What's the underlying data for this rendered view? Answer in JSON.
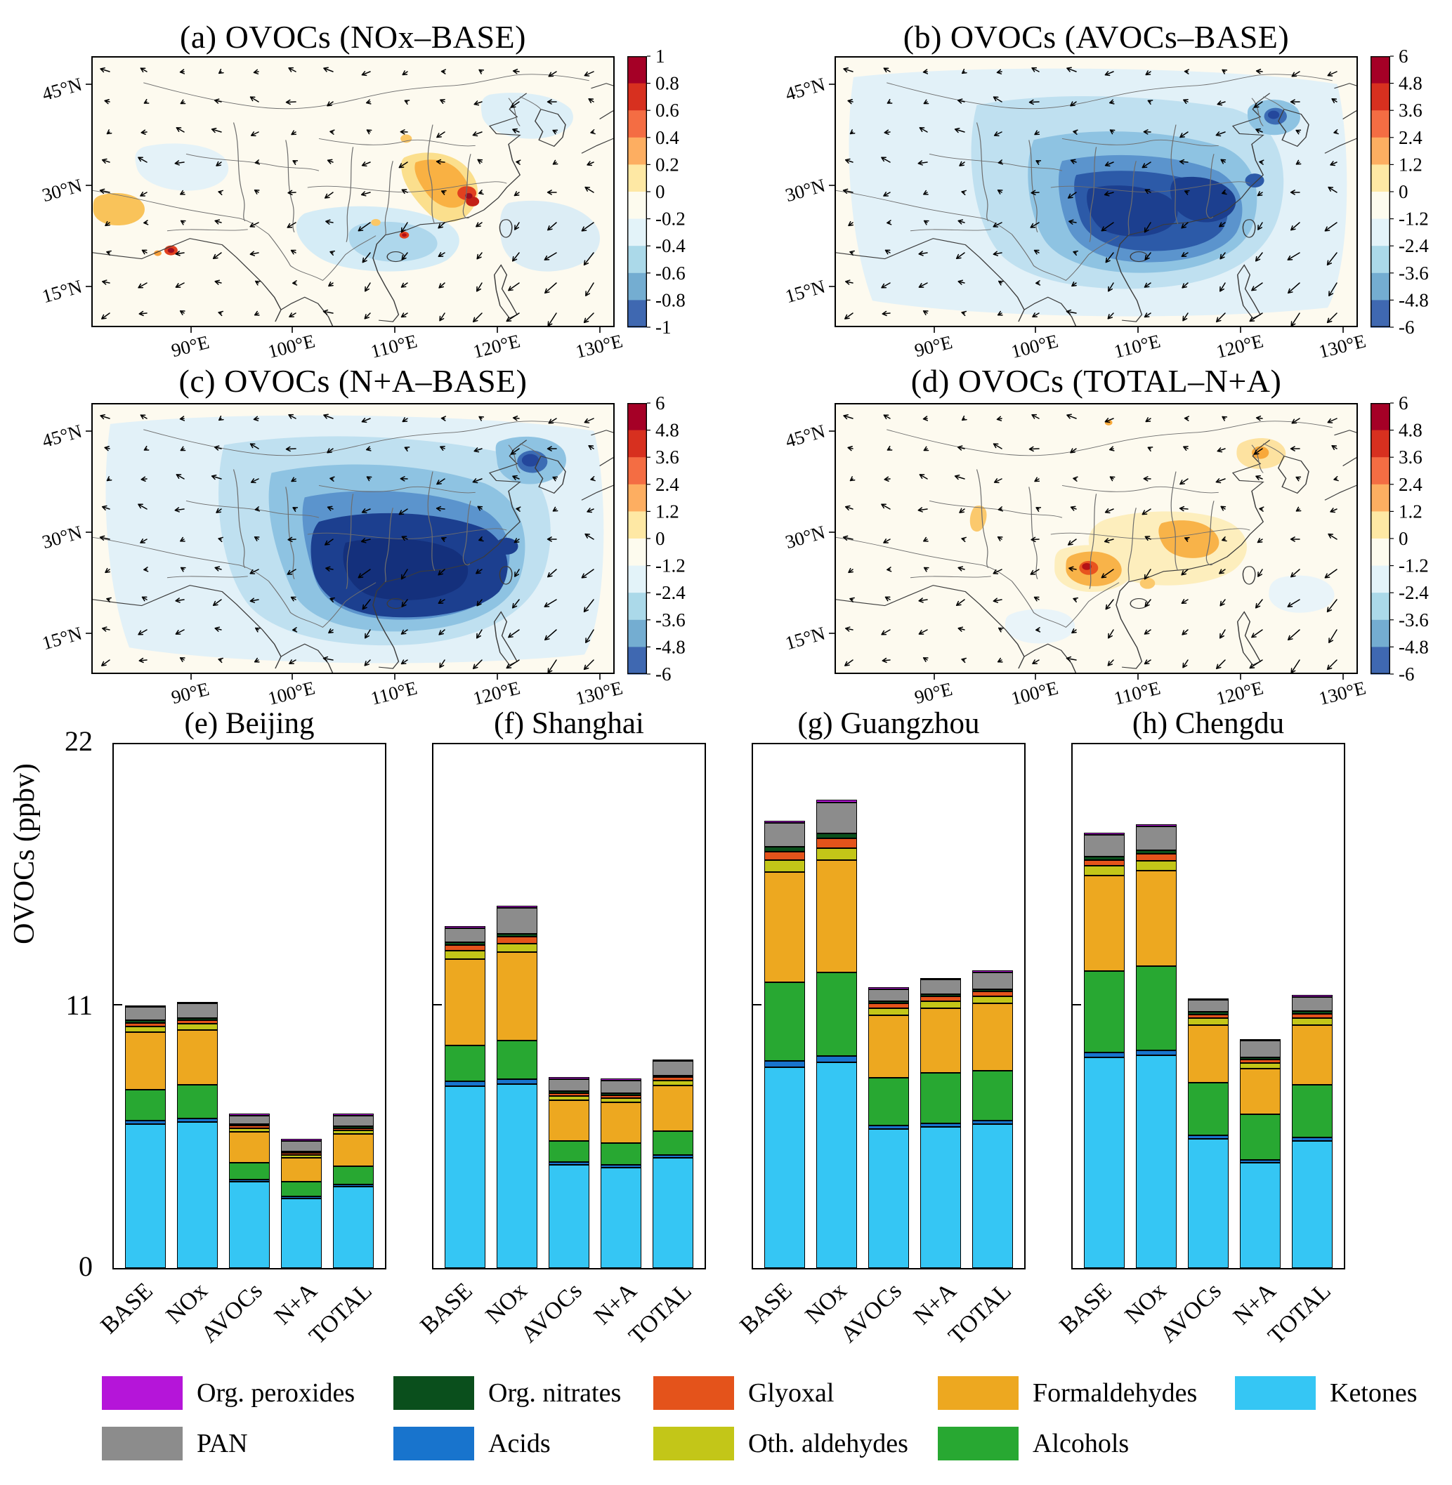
{
  "map_axes": {
    "lon_ticks": [
      "90°E",
      "100°E",
      "110°E",
      "120°E",
      "130°E"
    ],
    "lat_ticks": [
      "45°N",
      "30°N",
      "15°N"
    ]
  },
  "panels": [
    {
      "id": "a",
      "title": "(a) OVOCs (NOx–BASE)",
      "cb_ticks": [
        "1",
        "0.8",
        "0.6",
        "0.4",
        "0.2",
        "0",
        "-0.2",
        "-0.4",
        "-0.6",
        "-0.8",
        "-1"
      ]
    },
    {
      "id": "b",
      "title": "(b) OVOCs (AVOCs–BASE)",
      "cb_ticks": [
        "6",
        "4.8",
        "3.6",
        "2.4",
        "1.2",
        "0",
        "-1.2",
        "-2.4",
        "-3.6",
        "-4.8",
        "-6"
      ]
    },
    {
      "id": "c",
      "title": "(c) OVOCs (N+A–BASE)",
      "cb_ticks": [
        "6",
        "4.8",
        "3.6",
        "2.4",
        "1.2",
        "0",
        "-1.2",
        "-2.4",
        "-3.6",
        "-4.8",
        "-6"
      ]
    },
    {
      "id": "d",
      "title": "(d) OVOCs (TOTAL–N+A)",
      "cb_ticks": [
        "6",
        "4.8",
        "3.6",
        "2.4",
        "1.2",
        "0",
        "-1.2",
        "-2.4",
        "-3.6",
        "-4.8",
        "-6"
      ]
    }
  ],
  "colorbar_colors": [
    "#a50026",
    "#d7301f",
    "#f46d43",
    "#fdae61",
    "#fee8a4",
    "#fdfbee",
    "#e3f3f9",
    "#abd9e9",
    "#74add1",
    "#3f68b1"
  ],
  "legend": {
    "items": [
      {
        "label": "Org. peroxides",
        "color": "#b515d9"
      },
      {
        "label": "Org. nitrates",
        "color": "#0a4f1c"
      },
      {
        "label": "Glyoxal",
        "color": "#e4531b"
      },
      {
        "label": "Formaldehydes",
        "color": "#eda820"
      },
      {
        "label": "Ketones",
        "color": "#35c6f4"
      },
      {
        "label": "PAN",
        "color": "#8c8c8c"
      },
      {
        "label": "Acids",
        "color": "#1874cd"
      },
      {
        "label": "Oth. aldehydes",
        "color": "#c3c618"
      },
      {
        "label": "Alcohols",
        "color": "#28a832"
      }
    ]
  },
  "chart_data": {
    "maps": [
      {
        "type": "heatmap",
        "panel": "a",
        "title": "(a) OVOCs (NOx–BASE)",
        "units": "ppbv",
        "scale_range": [
          -1,
          1
        ],
        "description": "OVOC change from NOx reduction: increases up to ~1 ppbv over the Yangtze River Delta and central-east China, weak decreases (−0.2 to −0.6) over southern China; wind vectors overlaid."
      },
      {
        "type": "heatmap",
        "panel": "b",
        "title": "(b) OVOCs (AVOCs–BASE)",
        "units": "ppbv",
        "scale_range": [
          -6,
          6
        ],
        "description": "Widespread OVOC decreases up to −6 ppbv over central, southern and eastern China from AVOC reduction; smaller decreases elsewhere and a decrease spot over northeast China."
      },
      {
        "type": "heatmap",
        "panel": "c",
        "title": "(c) OVOCs (N+A–BASE)",
        "units": "ppbv",
        "scale_range": [
          -6,
          6
        ],
        "description": "Strongest and most extensive OVOC decreases (to −6 ppbv) over southern/central China under combined NOx+AVOC reduction; decrease patch over northeast China."
      },
      {
        "type": "heatmap",
        "panel": "d",
        "title": "(d) OVOCs (TOTAL–N+A)",
        "units": "ppbv",
        "scale_range": [
          -6,
          6
        ],
        "description": "Mostly small positive differences (~1–3 ppbv) over Sichuan/central-east China with a red hotspot near 105°E 25°N and an orange spot over northeast China."
      }
    ],
    "bars": {
      "type": "stacked-bar",
      "ylabel": "OVOCs (ppbv)",
      "ylim": [
        0,
        22
      ],
      "yticks": [
        "0",
        "11",
        "22"
      ],
      "scenarios": [
        "BASE",
        "NOx",
        "AVOCs",
        "N+A",
        "TOTAL"
      ],
      "stack_order_bottom_to_top": [
        "Ketones",
        "Acids",
        "Alcohols",
        "Formaldehydes",
        "Oth. aldehydes",
        "Glyoxal",
        "Org. nitrates",
        "PAN",
        "Org. peroxides"
      ],
      "cities": [
        {
          "title": "(e) Beijing",
          "series": {
            "Ketones": [
              6.0,
              6.1,
              3.6,
              2.9,
              3.4
            ],
            "Acids": [
              0.15,
              0.15,
              0.1,
              0.1,
              0.1
            ],
            "Alcohols": [
              1.3,
              1.4,
              0.7,
              0.6,
              0.75
            ],
            "Formaldehydes": [
              2.4,
              2.3,
              1.3,
              1.0,
              1.35
            ],
            "Oth. aldehydes": [
              0.25,
              0.25,
              0.15,
              0.12,
              0.15
            ],
            "Glyoxal": [
              0.15,
              0.15,
              0.1,
              0.08,
              0.1
            ],
            "Org. nitrates": [
              0.1,
              0.1,
              0.05,
              0.05,
              0.05
            ],
            "PAN": [
              0.55,
              0.6,
              0.35,
              0.45,
              0.45
            ],
            "Org. peroxides": [
              0.05,
              0.05,
              0.03,
              0.03,
              0.03
            ]
          }
        },
        {
          "title": "(f) Shanghai",
          "series": {
            "Ketones": [
              7.6,
              7.7,
              4.3,
              4.2,
              4.6
            ],
            "Acids": [
              0.2,
              0.2,
              0.12,
              0.12,
              0.13
            ],
            "Alcohols": [
              1.5,
              1.6,
              0.9,
              0.9,
              1.0
            ],
            "Formaldehydes": [
              3.6,
              3.7,
              1.7,
              1.7,
              1.9
            ],
            "Oth. aldehydes": [
              0.35,
              0.35,
              0.18,
              0.18,
              0.2
            ],
            "Glyoxal": [
              0.25,
              0.3,
              0.12,
              0.12,
              0.14
            ],
            "Org. nitrates": [
              0.1,
              0.1,
              0.06,
              0.06,
              0.07
            ],
            "PAN": [
              0.6,
              1.1,
              0.5,
              0.55,
              0.6
            ],
            "Org. peroxides": [
              0.05,
              0.06,
              0.03,
              0.03,
              0.04
            ]
          }
        },
        {
          "title": "(g) Guangzhou",
          "series": {
            "Ketones": [
              8.4,
              8.6,
              5.8,
              5.9,
              6.0
            ],
            "Acids": [
              0.25,
              0.25,
              0.15,
              0.15,
              0.15
            ],
            "Alcohols": [
              3.3,
              3.5,
              2.0,
              2.1,
              2.1
            ],
            "Formaldehydes": [
              4.6,
              4.7,
              2.6,
              2.7,
              2.8
            ],
            "Oth. aldehydes": [
              0.5,
              0.5,
              0.3,
              0.3,
              0.3
            ],
            "Glyoxal": [
              0.35,
              0.4,
              0.2,
              0.2,
              0.2
            ],
            "Org. nitrates": [
              0.2,
              0.2,
              0.1,
              0.1,
              0.1
            ],
            "PAN": [
              1.0,
              1.3,
              0.5,
              0.6,
              0.7
            ],
            "Org. peroxides": [
              0.1,
              0.12,
              0.05,
              0.05,
              0.08
            ]
          }
        },
        {
          "title": "(h) Chengdu",
          "series": {
            "Ketones": [
              8.8,
              8.9,
              5.4,
              4.4,
              5.3
            ],
            "Acids": [
              0.2,
              0.2,
              0.15,
              0.12,
              0.15
            ],
            "Alcohols": [
              3.4,
              3.5,
              2.2,
              1.9,
              2.2
            ],
            "Formaldehydes": [
              4.0,
              4.0,
              2.4,
              1.9,
              2.5
            ],
            "Oth. aldehydes": [
              0.4,
              0.4,
              0.3,
              0.25,
              0.3
            ],
            "Glyoxal": [
              0.25,
              0.3,
              0.15,
              0.15,
              0.18
            ],
            "Org. nitrates": [
              0.15,
              0.15,
              0.1,
              0.08,
              0.1
            ],
            "PAN": [
              0.9,
              1.0,
              0.5,
              0.7,
              0.6
            ],
            "Org. peroxides": [
              0.08,
              0.1,
              0.05,
              0.05,
              0.06
            ]
          }
        }
      ]
    }
  }
}
